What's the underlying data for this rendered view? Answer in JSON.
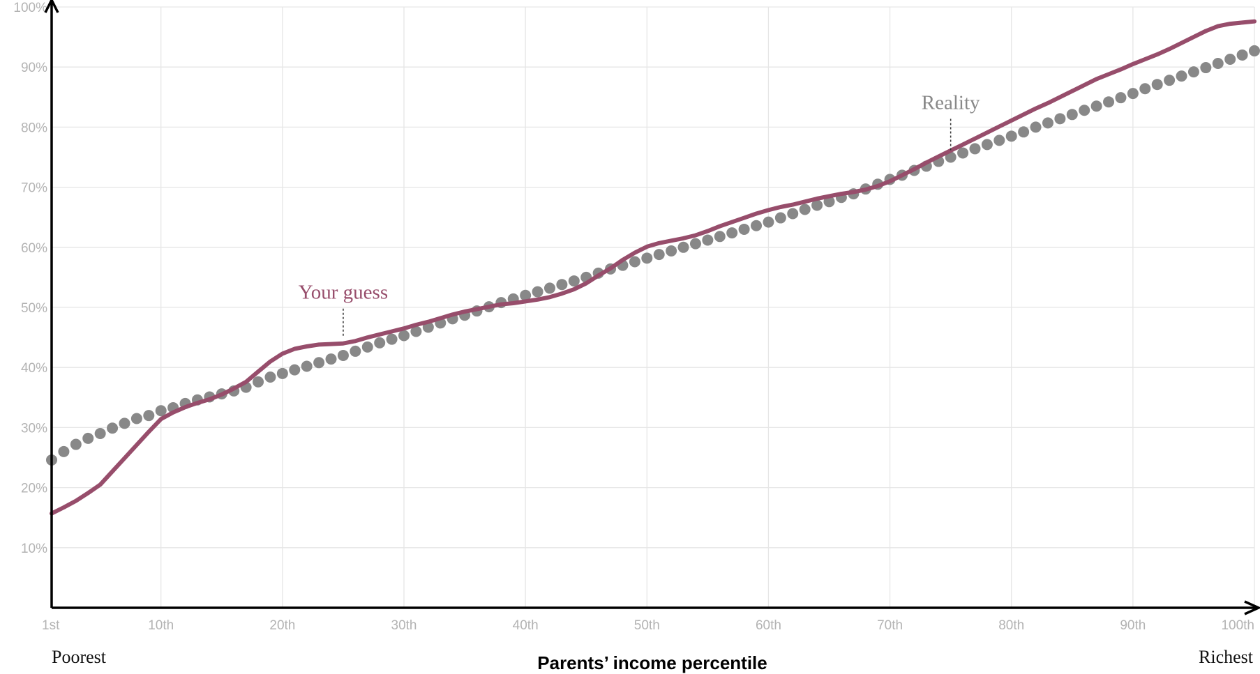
{
  "colors": {
    "guess": "#974d6b",
    "reality": "#888888",
    "axis": "#000000"
  },
  "labels": {
    "x_title": "Parents’ income percentile",
    "x_left": "Poorest",
    "x_right": "Richest",
    "guess": "Your guess",
    "reality": "Reality"
  },
  "chart_data": {
    "type": "line",
    "title": "",
    "xlabel": "Parents’ income percentile",
    "ylabel": "",
    "xlim": [
      1,
      100
    ],
    "ylim": [
      0,
      100
    ],
    "grid": true,
    "x_ticks": [
      1,
      10,
      20,
      30,
      40,
      50,
      60,
      70,
      80,
      90,
      100
    ],
    "x_tick_labels": [
      "1st",
      "10th",
      "20th",
      "30th",
      "40th",
      "50th",
      "60th",
      "70th",
      "80th",
      "90th",
      "100th"
    ],
    "y_ticks": [
      10,
      20,
      30,
      40,
      50,
      60,
      70,
      80,
      90,
      100
    ],
    "y_tick_labels": [
      "10%",
      "20%",
      "30%",
      "40%",
      "50%",
      "60%",
      "70%",
      "80%",
      "90%",
      "100%"
    ],
    "annotations": [
      {
        "text": "Your guess",
        "series": "Your guess",
        "x": 25
      },
      {
        "text": "Reality",
        "series": "Reality",
        "x": 75
      }
    ],
    "series": [
      {
        "name": "Your guess",
        "style": "line",
        "x": [
          1,
          2,
          3,
          4,
          5,
          6,
          7,
          8,
          9,
          10,
          11,
          12,
          13,
          14,
          15,
          16,
          17,
          18,
          19,
          20,
          21,
          22,
          23,
          24,
          25,
          26,
          27,
          28,
          29,
          30,
          31,
          32,
          33,
          34,
          35,
          36,
          37,
          38,
          39,
          40,
          41,
          42,
          43,
          44,
          45,
          46,
          47,
          48,
          49,
          50,
          51,
          52,
          53,
          54,
          55,
          56,
          57,
          58,
          59,
          60,
          61,
          62,
          63,
          64,
          65,
          66,
          67,
          68,
          69,
          70,
          71,
          72,
          73,
          74,
          75,
          76,
          77,
          78,
          79,
          80,
          81,
          82,
          83,
          84,
          85,
          86,
          87,
          88,
          89,
          90,
          91,
          92,
          93,
          94,
          95,
          96,
          97,
          98,
          99,
          100
        ],
        "y": [
          15.7,
          16.7,
          17.8,
          19.1,
          20.5,
          22.7,
          24.9,
          27.1,
          29.3,
          31.4,
          32.5,
          33.4,
          34.1,
          34.7,
          35.5,
          36.5,
          37.6,
          39.3,
          41.0,
          42.3,
          43.1,
          43.5,
          43.8,
          43.9,
          44.0,
          44.4,
          45.0,
          45.5,
          46.0,
          46.5,
          47.1,
          47.6,
          48.2,
          48.8,
          49.3,
          49.7,
          50.1,
          50.5,
          50.7,
          51.0,
          51.3,
          51.7,
          52.3,
          53.0,
          54.0,
          55.3,
          56.5,
          57.9,
          59.1,
          60.1,
          60.7,
          61.1,
          61.5,
          62.0,
          62.7,
          63.5,
          64.2,
          64.9,
          65.6,
          66.2,
          66.7,
          67.1,
          67.6,
          68.1,
          68.5,
          68.9,
          69.2,
          69.6,
          70.2,
          71.0,
          72.0,
          73.0,
          74.1,
          75.1,
          76.1,
          77.1,
          78.1,
          79.1,
          80.1,
          81.1,
          82.1,
          83.1,
          84.0,
          85.0,
          86.0,
          87.0,
          88.0,
          88.8,
          89.6,
          90.5,
          91.3,
          92.1,
          93.0,
          94.0,
          95.0,
          96.0,
          96.8,
          97.2,
          97.4,
          97.6
        ]
      },
      {
        "name": "Reality",
        "style": "dotted",
        "x": [
          1,
          2,
          3,
          4,
          5,
          6,
          7,
          8,
          9,
          10,
          11,
          12,
          13,
          14,
          15,
          16,
          17,
          18,
          19,
          20,
          21,
          22,
          23,
          24,
          25,
          26,
          27,
          28,
          29,
          30,
          31,
          32,
          33,
          34,
          35,
          36,
          37,
          38,
          39,
          40,
          41,
          42,
          43,
          44,
          45,
          46,
          47,
          48,
          49,
          50,
          51,
          52,
          53,
          54,
          55,
          56,
          57,
          58,
          59,
          60,
          61,
          62,
          63,
          64,
          65,
          66,
          67,
          68,
          69,
          70,
          71,
          72,
          73,
          74,
          75,
          76,
          77,
          78,
          79,
          80,
          81,
          82,
          83,
          84,
          85,
          86,
          87,
          88,
          89,
          90,
          91,
          92,
          93,
          94,
          95,
          96,
          97,
          98,
          99,
          100
        ],
        "y": [
          24.6,
          26.0,
          27.2,
          28.2,
          29.0,
          29.9,
          30.7,
          31.5,
          32.0,
          32.8,
          33.3,
          34.0,
          34.6,
          35.1,
          35.6,
          36.1,
          36.7,
          37.6,
          38.4,
          39.0,
          39.6,
          40.2,
          40.8,
          41.4,
          42.0,
          42.7,
          43.4,
          44.1,
          44.7,
          45.3,
          46.0,
          46.7,
          47.4,
          48.1,
          48.7,
          49.4,
          50.1,
          50.8,
          51.4,
          52.0,
          52.6,
          53.2,
          53.8,
          54.4,
          55.0,
          55.7,
          56.4,
          57.0,
          57.6,
          58.2,
          58.8,
          59.4,
          60.0,
          60.6,
          61.2,
          61.8,
          62.4,
          63.0,
          63.6,
          64.2,
          64.9,
          65.6,
          66.3,
          67.0,
          67.6,
          68.3,
          68.9,
          69.7,
          70.5,
          71.3,
          72.0,
          72.8,
          73.5,
          74.3,
          75.0,
          75.7,
          76.4,
          77.1,
          77.8,
          78.5,
          79.2,
          80.0,
          80.7,
          81.4,
          82.1,
          82.8,
          83.5,
          84.2,
          84.9,
          85.6,
          86.4,
          87.1,
          87.8,
          88.5,
          89.2,
          89.9,
          90.6,
          91.3,
          92.0,
          92.7
        ]
      }
    ]
  }
}
